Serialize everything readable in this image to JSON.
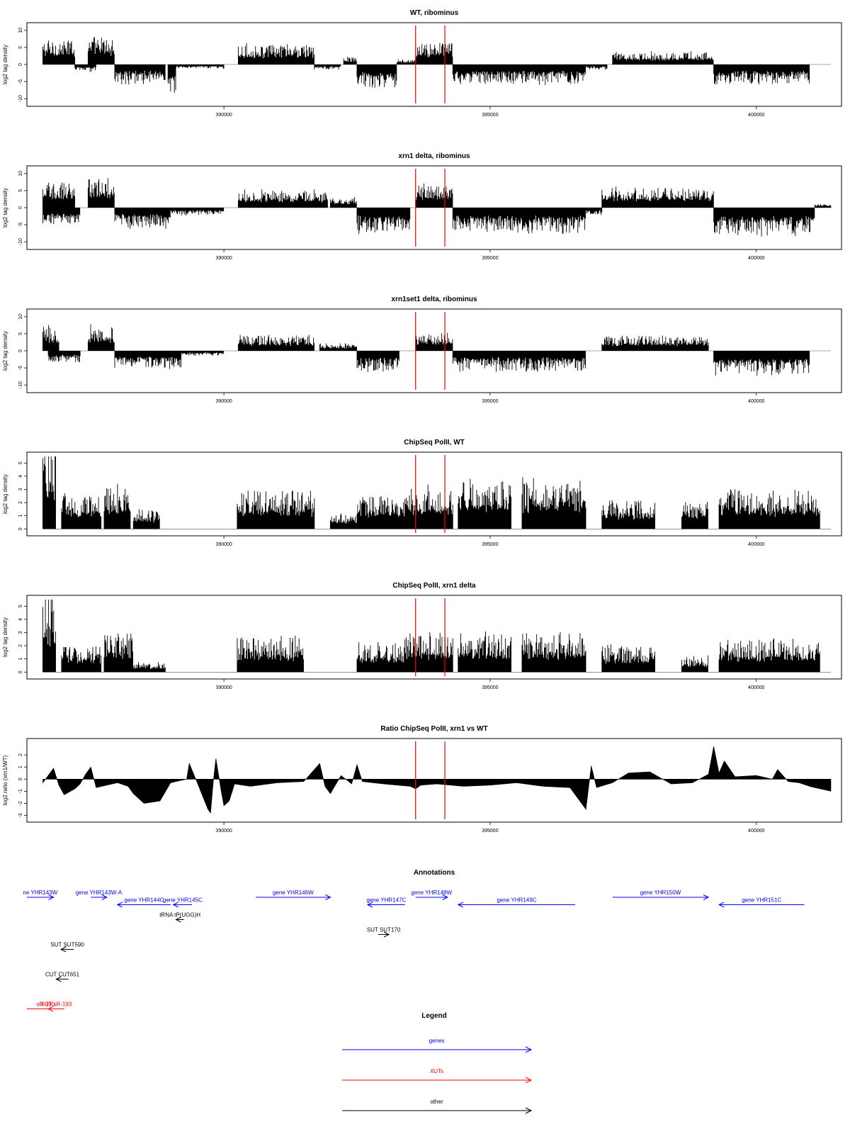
{
  "chart_data": [
    {
      "type": "bar",
      "title": "WT, ribominus",
      "ylabel": "log2 tag density",
      "ylim": [
        -11,
        11
      ],
      "yticks": [
        -10,
        -5,
        0,
        5,
        10
      ],
      "xlim": [
        386300,
        401600
      ],
      "xticks": [
        390000,
        395000,
        400000
      ],
      "markers_x": [
        393600,
        394150
      ],
      "segments": [
        {
          "from": 386600,
          "to": 387200,
          "sign": 1,
          "amp": 5
        },
        {
          "from": 387200,
          "to": 387600,
          "sign": -1,
          "amp": 1.5
        },
        {
          "from": 387450,
          "to": 387950,
          "sign": 1,
          "amp": 5.5
        },
        {
          "from": 387950,
          "to": 388900,
          "sign": -1,
          "amp": 4
        },
        {
          "from": 388950,
          "to": 389100,
          "sign": -1,
          "amp": 6
        },
        {
          "from": 389100,
          "to": 390000,
          "sign": -1,
          "amp": 0.8
        },
        {
          "from": 390270,
          "to": 391700,
          "sign": 1,
          "amp": 4
        },
        {
          "from": 391700,
          "to": 392200,
          "sign": -1,
          "amp": 1
        },
        {
          "from": 392250,
          "to": 392500,
          "sign": 1,
          "amp": 1.5
        },
        {
          "from": 392500,
          "to": 393250,
          "sign": -1,
          "amp": 4.5
        },
        {
          "from": 393250,
          "to": 393600,
          "sign": 1,
          "amp": 1
        },
        {
          "from": 393600,
          "to": 394300,
          "sign": 1,
          "amp": 4.5
        },
        {
          "from": 394300,
          "to": 396800,
          "sign": -1,
          "amp": 4
        },
        {
          "from": 396800,
          "to": 397200,
          "sign": -1,
          "amp": 1
        },
        {
          "from": 397300,
          "to": 399200,
          "sign": 1,
          "amp": 2.5
        },
        {
          "from": 399200,
          "to": 401000,
          "sign": -1,
          "amp": 4
        }
      ]
    },
    {
      "type": "bar",
      "title": "xrn1 delta, ribominus",
      "ylabel": "log2 tag density",
      "ylim": [
        -11,
        11
      ],
      "yticks": [
        -10,
        -5,
        0,
        5,
        10
      ],
      "xlim": [
        386300,
        401600
      ],
      "xticks": [
        390000,
        395000,
        400000
      ],
      "markers_x": [
        393600,
        394150
      ],
      "segments": [
        {
          "from": 386600,
          "to": 387200,
          "sign": 1,
          "amp": 5
        },
        {
          "from": 386600,
          "to": 387300,
          "sign": -1,
          "amp": 3.5
        },
        {
          "from": 387450,
          "to": 387950,
          "sign": 1,
          "amp": 6
        },
        {
          "from": 387950,
          "to": 389000,
          "sign": -1,
          "amp": 4
        },
        {
          "from": 389000,
          "to": 390000,
          "sign": -1,
          "amp": 1.5
        },
        {
          "from": 390270,
          "to": 391950,
          "sign": 1,
          "amp": 3.5
        },
        {
          "from": 392000,
          "to": 392500,
          "sign": 1,
          "amp": 2
        },
        {
          "from": 392500,
          "to": 393500,
          "sign": -1,
          "amp": 5
        },
        {
          "from": 393600,
          "to": 394300,
          "sign": 1,
          "amp": 4.5
        },
        {
          "from": 394300,
          "to": 396800,
          "sign": -1,
          "amp": 5
        },
        {
          "from": 396800,
          "to": 397100,
          "sign": -1,
          "amp": 1.5
        },
        {
          "from": 397100,
          "to": 399200,
          "sign": 1,
          "amp": 4
        },
        {
          "from": 399200,
          "to": 401100,
          "sign": -1,
          "amp": 5.5
        },
        {
          "from": 401100,
          "to": 401400,
          "sign": 1,
          "amp": 0.8
        }
      ]
    },
    {
      "type": "bar",
      "title": "xrn1set1 delta, ribominus",
      "ylabel": "log2 tag density",
      "ylim": [
        -11,
        11
      ],
      "yticks": [
        -10,
        -5,
        0,
        5,
        10
      ],
      "xlim": [
        386300,
        401600
      ],
      "xticks": [
        390000,
        395000,
        400000
      ],
      "markers_x": [
        393600,
        394150
      ],
      "segments": [
        {
          "from": 386600,
          "to": 386900,
          "sign": 1,
          "amp": 5
        },
        {
          "from": 386700,
          "to": 387300,
          "sign": -1,
          "amp": 2.5
        },
        {
          "from": 387450,
          "to": 387950,
          "sign": 1,
          "amp": 5
        },
        {
          "from": 387950,
          "to": 389200,
          "sign": -1,
          "amp": 3.5
        },
        {
          "from": 389200,
          "to": 390000,
          "sign": -1,
          "amp": 1
        },
        {
          "from": 390270,
          "to": 391700,
          "sign": 1,
          "amp": 3
        },
        {
          "from": 391800,
          "to": 392500,
          "sign": 1,
          "amp": 1.5
        },
        {
          "from": 392500,
          "to": 393300,
          "sign": -1,
          "amp": 4
        },
        {
          "from": 393600,
          "to": 394300,
          "sign": 1,
          "amp": 3.5
        },
        {
          "from": 394300,
          "to": 396800,
          "sign": -1,
          "amp": 4
        },
        {
          "from": 397100,
          "to": 399100,
          "sign": 1,
          "amp": 3
        },
        {
          "from": 399200,
          "to": 401000,
          "sign": -1,
          "amp": 5
        }
      ]
    },
    {
      "type": "bar",
      "title": "ChipSeq PolII, WT",
      "ylabel": "log2 tag density",
      "ylim": [
        -0.2,
        5.5
      ],
      "yticks": [
        0,
        1,
        2,
        3,
        4,
        5
      ],
      "xlim": [
        386300,
        401600
      ],
      "xticks": [
        390000,
        395000,
        400000
      ],
      "markers_x": [
        393600,
        394150
      ],
      "segments": [
        {
          "from": 386600,
          "to": 386850,
          "sign": 1,
          "amp": 4.7
        },
        {
          "from": 386950,
          "to": 387700,
          "sign": 1,
          "amp": 1.8
        },
        {
          "from": 387750,
          "to": 388250,
          "sign": 1,
          "amp": 2.2
        },
        {
          "from": 388300,
          "to": 388800,
          "sign": 1,
          "amp": 1
        },
        {
          "from": 390250,
          "to": 391700,
          "sign": 1,
          "amp": 2
        },
        {
          "from": 392000,
          "to": 392500,
          "sign": 1,
          "amp": 0.8
        },
        {
          "from": 392500,
          "to": 393400,
          "sign": 1,
          "amp": 1.8
        },
        {
          "from": 393400,
          "to": 394300,
          "sign": 1,
          "amp": 2.2
        },
        {
          "from": 394400,
          "to": 395400,
          "sign": 1,
          "amp": 2.6
        },
        {
          "from": 395600,
          "to": 396800,
          "sign": 1,
          "amp": 2.6
        },
        {
          "from": 397100,
          "to": 398100,
          "sign": 1,
          "amp": 1.5
        },
        {
          "from": 398600,
          "to": 399100,
          "sign": 1,
          "amp": 1.5
        },
        {
          "from": 399300,
          "to": 401200,
          "sign": 1,
          "amp": 2
        }
      ]
    },
    {
      "type": "bar",
      "title": "ChipSeq PolII, xrn1 delta",
      "ylabel": "log2 tag density",
      "ylim": [
        -0.2,
        5.5
      ],
      "yticks": [
        0,
        1,
        2,
        3,
        4,
        5
      ],
      "xlim": [
        386300,
        401600
      ],
      "xticks": [
        390000,
        395000,
        400000
      ],
      "markers_x": [
        393600,
        394150
      ],
      "segments": [
        {
          "from": 386600,
          "to": 386850,
          "sign": 1,
          "amp": 4.2
        },
        {
          "from": 386950,
          "to": 387700,
          "sign": 1,
          "amp": 1.4
        },
        {
          "from": 387750,
          "to": 388300,
          "sign": 1,
          "amp": 2.1
        },
        {
          "from": 388300,
          "to": 388900,
          "sign": 1,
          "amp": 0.5
        },
        {
          "from": 390250,
          "to": 391500,
          "sign": 1,
          "amp": 1.8
        },
        {
          "from": 392500,
          "to": 393400,
          "sign": 1,
          "amp": 1.5
        },
        {
          "from": 393400,
          "to": 394300,
          "sign": 1,
          "amp": 2
        },
        {
          "from": 394400,
          "to": 395400,
          "sign": 1,
          "amp": 2
        },
        {
          "from": 395600,
          "to": 396800,
          "sign": 1,
          "amp": 2
        },
        {
          "from": 397100,
          "to": 398100,
          "sign": 1,
          "amp": 1.4
        },
        {
          "from": 398600,
          "to": 399100,
          "sign": 1,
          "amp": 0.8
        },
        {
          "from": 399300,
          "to": 401200,
          "sign": 1,
          "amp": 1.7
        }
      ]
    },
    {
      "type": "area",
      "title": "Ratio ChipSeq PolII, xrn1 vs WT",
      "ylabel": "log2 ratio (xrn1/WT)",
      "ylim": [
        -3.2,
        3
      ],
      "yticks": [
        -3,
        -2,
        -1,
        0,
        1,
        2
      ],
      "xlim": [
        386300,
        401600
      ],
      "xticks": [
        390000,
        395000,
        400000
      ],
      "markers_x": [
        393600,
        394150
      ],
      "x": [
        386600,
        386800,
        386900,
        387000,
        387200,
        387300,
        387400,
        387500,
        387600,
        387800,
        388000,
        388200,
        388300,
        388500,
        388800,
        389000,
        389300,
        389350,
        389500,
        389700,
        389750,
        389800,
        389850,
        389950,
        390000,
        390100,
        390200,
        390500,
        391000,
        391500,
        391800,
        391900,
        392000,
        392200,
        392400,
        392500,
        392600,
        393000,
        393500,
        393600,
        393700,
        394000,
        394500,
        395000,
        395500,
        396000,
        396500,
        396800,
        396900,
        397000,
        397300,
        397600,
        398000,
        398400,
        398800,
        399100,
        399200,
        399300,
        399400,
        399600,
        400000,
        400300,
        400400,
        400600,
        400800,
        401000,
        401200,
        401400
      ],
      "y": [
        -0.3,
        0.9,
        -0.5,
        -1.3,
        -0.8,
        -0.4,
        0.4,
        1.0,
        -0.7,
        -0.5,
        -0.3,
        -0.6,
        -1.2,
        -2.0,
        -1.8,
        -0.3,
        0.0,
        1.3,
        -0.3,
        -2.5,
        -2.8,
        -0.2,
        1.7,
        -1.0,
        -2.2,
        -1.8,
        -0.4,
        -0.6,
        -0.3,
        -0.2,
        1.3,
        -0.6,
        -1.2,
        0.3,
        -0.4,
        1.2,
        -0.2,
        -0.4,
        -0.6,
        -0.8,
        -0.5,
        -0.4,
        -0.6,
        -0.5,
        -0.3,
        -0.6,
        -0.7,
        -2.5,
        1.1,
        -0.7,
        -0.3,
        0.5,
        0.6,
        -0.4,
        -0.3,
        0.4,
        2.7,
        0.5,
        1.5,
        0.2,
        0.3,
        0.0,
        0.8,
        -0.2,
        -0.3,
        -0.6,
        -0.8,
        -1.0
      ]
    }
  ],
  "annotations": {
    "title": "Annotations",
    "xlim": [
      386300,
      401600
    ],
    "items": [
      {
        "label": "ne YHR143W",
        "category": "gene",
        "dir": "right",
        "from": 386000,
        "to": 386800,
        "row": 0
      },
      {
        "label": "gene YHR143W-A",
        "category": "gene",
        "dir": "right",
        "from": 387500,
        "to": 387800,
        "row": 0
      },
      {
        "label": "gene YHR144C",
        "category": "gene",
        "dir": "left",
        "from": 388000,
        "to": 389000,
        "row": 0.5
      },
      {
        "label": "gene YHR145C",
        "category": "gene",
        "dir": "left",
        "from": 389050,
        "to": 389400,
        "row": 0.5
      },
      {
        "label": "gene YHR146W",
        "category": "gene",
        "dir": "right",
        "from": 390600,
        "to": 392000,
        "row": 0
      },
      {
        "label": "gene YHR147C",
        "category": "gene",
        "dir": "left",
        "from": 392700,
        "to": 393400,
        "row": 0.5
      },
      {
        "label": "gene YHR148W",
        "category": "gene",
        "dir": "right",
        "from": 393600,
        "to": 394200,
        "row": 0
      },
      {
        "label": "gene YHR149C",
        "category": "gene",
        "dir": "left",
        "from": 394400,
        "to": 396600,
        "row": 0.5
      },
      {
        "label": "gene YHR150W",
        "category": "gene",
        "dir": "right",
        "from": 397300,
        "to": 399100,
        "row": 0
      },
      {
        "label": "gene YHR151C",
        "category": "gene",
        "dir": "left",
        "from": 399300,
        "to": 400900,
        "row": 0.5
      },
      {
        "label": "tRNA tP(UGG)H",
        "category": "other",
        "dir": "left",
        "from": 389100,
        "to": 389250,
        "row": 1.5
      },
      {
        "label": "SUT SUT590",
        "category": "other",
        "dir": "left",
        "from": 386940,
        "to": 387180,
        "row": 3.5
      },
      {
        "label": "SUT SUT170",
        "category": "other",
        "dir": "right",
        "from": 392900,
        "to": 393100,
        "row": 2.5
      },
      {
        "label": "CUT CUT651",
        "category": "other",
        "dir": "left",
        "from": 386850,
        "to": 387080,
        "row": 5.5
      },
      {
        "label": "sR-190",
        "category": "xut",
        "dir": "none",
        "from": 386000,
        "to": 387000,
        "row": 7.5
      },
      {
        "label": "XUT sR-193",
        "category": "xut",
        "dir": "left",
        "from": 386700,
        "to": 387000,
        "row": 7.5
      }
    ]
  },
  "legend": {
    "title": "Legend",
    "items": [
      {
        "label": "genes",
        "color": "#0000ff"
      },
      {
        "label": "XUTs",
        "color": "#ff0000"
      },
      {
        "label": "other",
        "color": "#000000"
      }
    ]
  },
  "colors": {
    "marker": "#ff0000",
    "gene": "#0000ff",
    "xut": "#ff0000",
    "other": "#000000",
    "bars": "#000000"
  }
}
